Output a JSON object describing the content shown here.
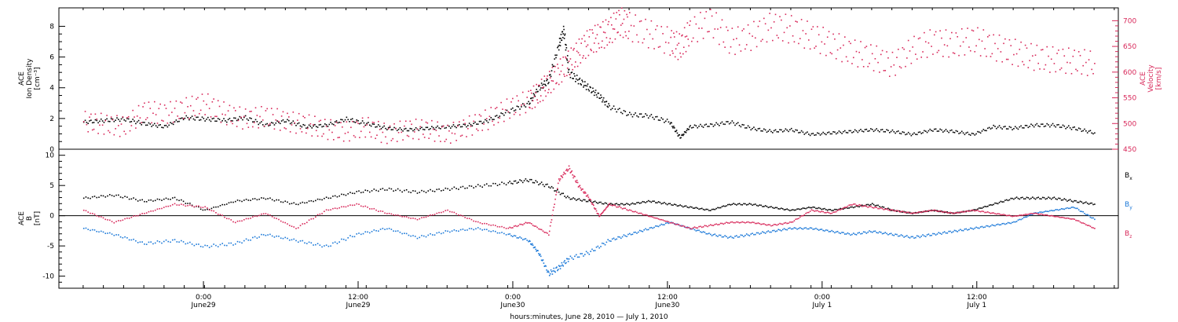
{
  "colors": {
    "black": "#000000",
    "red": "#d8285a",
    "blue": "#1a78d8"
  },
  "chart_data": [
    {
      "type": "scatter",
      "panel": "top",
      "ylabel_left": [
        "ACE",
        "Ion Density",
        "[cm⁻³]"
      ],
      "ylabel_right": [
        "ACE",
        "Velocity",
        "[km/s]"
      ],
      "ylim_left": [
        0,
        9.2
      ],
      "yticks_left": [
        "0",
        "2",
        "4",
        "6",
        "8"
      ],
      "ylim_right": [
        450,
        725
      ],
      "yticks_right": [
        "450",
        "500",
        "550",
        "600",
        "650",
        "700"
      ],
      "series": [
        {
          "color": "black",
          "axis": "left",
          "points": [
            [
              0,
              1.8
            ],
            [
              2,
              1.9
            ],
            [
              4,
              2.0
            ],
            [
              6,
              1.7
            ],
            [
              8,
              1.5
            ],
            [
              10,
              2.1
            ],
            [
              12,
              2.0
            ],
            [
              14,
              1.9
            ],
            [
              16,
              2.1
            ],
            [
              18,
              1.6
            ],
            [
              20,
              1.9
            ],
            [
              22,
              1.5
            ],
            [
              24,
              1.6
            ],
            [
              26,
              2.0
            ],
            [
              28,
              1.7
            ],
            [
              30,
              1.4
            ],
            [
              32,
              1.3
            ],
            [
              34,
              1.4
            ],
            [
              36,
              1.5
            ],
            [
              38,
              1.6
            ],
            [
              40,
              1.9
            ],
            [
              42,
              2.5
            ],
            [
              44,
              3.0
            ],
            [
              45,
              4.0
            ],
            [
              46,
              4.5
            ],
            [
              47,
              6.8
            ],
            [
              47.5,
              7.8
            ],
            [
              48,
              5.0
            ],
            [
              49,
              4.5
            ],
            [
              50,
              4.0
            ],
            [
              51,
              3.5
            ],
            [
              52,
              2.8
            ],
            [
              54,
              2.3
            ],
            [
              56,
              2.2
            ],
            [
              58,
              1.8
            ],
            [
              59,
              0.8
            ],
            [
              60,
              1.5
            ],
            [
              62,
              1.6
            ],
            [
              64,
              1.8
            ],
            [
              66,
              1.4
            ],
            [
              68,
              1.2
            ],
            [
              70,
              1.3
            ],
            [
              72,
              1.0
            ],
            [
              74,
              1.1
            ],
            [
              76,
              1.2
            ],
            [
              78,
              1.3
            ],
            [
              80,
              1.2
            ],
            [
              82,
              1.0
            ],
            [
              84,
              1.3
            ],
            [
              86,
              1.2
            ],
            [
              88,
              1.0
            ],
            [
              90,
              1.5
            ],
            [
              92,
              1.4
            ],
            [
              94,
              1.6
            ],
            [
              96,
              1.6
            ],
            [
              98,
              1.4
            ],
            [
              100,
              1.1
            ]
          ]
        },
        {
          "color": "red",
          "axis": "right",
          "points": [
            [
              0,
              505
            ],
            [
              2,
              500
            ],
            [
              4,
              495
            ],
            [
              6,
              525
            ],
            [
              8,
              520
            ],
            [
              10,
              530
            ],
            [
              12,
              540
            ],
            [
              14,
              520
            ],
            [
              16,
              510
            ],
            [
              18,
              515
            ],
            [
              20,
              505
            ],
            [
              22,
              500
            ],
            [
              24,
              490
            ],
            [
              26,
              485
            ],
            [
              28,
              495
            ],
            [
              30,
              480
            ],
            [
              32,
              490
            ],
            [
              34,
              490
            ],
            [
              36,
              480
            ],
            [
              38,
              495
            ],
            [
              40,
              510
            ],
            [
              42,
              530
            ],
            [
              44,
              545
            ],
            [
              45,
              560
            ],
            [
              46,
              580
            ],
            [
              47,
              600
            ],
            [
              48,
              620
            ],
            [
              49,
              640
            ],
            [
              50,
              660
            ],
            [
              51,
              670
            ],
            [
              52,
              680
            ],
            [
              53,
              700
            ],
            [
              54,
              690
            ],
            [
              56,
              675
            ],
            [
              58,
              660
            ],
            [
              59,
              650
            ],
            [
              60,
              680
            ],
            [
              62,
              700
            ],
            [
              64,
              660
            ],
            [
              66,
              670
            ],
            [
              68,
              690
            ],
            [
              70,
              685
            ],
            [
              72,
              670
            ],
            [
              74,
              655
            ],
            [
              76,
              640
            ],
            [
              78,
              630
            ],
            [
              80,
              615
            ],
            [
              82,
              645
            ],
            [
              84,
              660
            ],
            [
              86,
              655
            ],
            [
              88,
              665
            ],
            [
              90,
              650
            ],
            [
              92,
              640
            ],
            [
              94,
              630
            ],
            [
              96,
              625
            ],
            [
              98,
              622
            ],
            [
              100,
              618
            ]
          ]
        }
      ]
    },
    {
      "type": "scatter",
      "panel": "bottom",
      "ylabel_left": [
        "ACE",
        "B",
        "[nT]"
      ],
      "ylim": [
        -12,
        11
      ],
      "yticks": [
        "10",
        "5",
        "0",
        "-5",
        "-10"
      ],
      "zero_line": true,
      "legend": [
        "B",
        "B",
        "B"
      ],
      "legend_subscripts": [
        "x",
        "y",
        "z"
      ],
      "legend_placement": "right",
      "series": [
        {
          "color": "black",
          "points": [
            [
              0,
              3.0
            ],
            [
              3,
              3.5
            ],
            [
              6,
              2.5
            ],
            [
              9,
              3.0
            ],
            [
              12,
              1.0
            ],
            [
              15,
              2.5
            ],
            [
              18,
              3.0
            ],
            [
              21,
              2.0
            ],
            [
              24,
              3.0
            ],
            [
              27,
              4.0
            ],
            [
              30,
              4.5
            ],
            [
              33,
              4.0
            ],
            [
              36,
              4.5
            ],
            [
              39,
              5.0
            ],
            [
              42,
              5.5
            ],
            [
              44,
              6.0
            ],
            [
              46,
              5.0
            ],
            [
              48,
              3.0
            ],
            [
              50,
              2.5
            ],
            [
              52,
              2.0
            ],
            [
              54,
              2.0
            ],
            [
              56,
              2.5
            ],
            [
              58,
              2.0
            ],
            [
              60,
              1.5
            ],
            [
              62,
              1.0
            ],
            [
              64,
              2.0
            ],
            [
              66,
              2.0
            ],
            [
              68,
              1.5
            ],
            [
              70,
              1.0
            ],
            [
              72,
              1.5
            ],
            [
              74,
              1.0
            ],
            [
              76,
              1.5
            ],
            [
              78,
              2.0
            ],
            [
              80,
              1.0
            ],
            [
              82,
              0.5
            ],
            [
              84,
              1.0
            ],
            [
              86,
              0.5
            ],
            [
              88,
              1.0
            ],
            [
              90,
              2.0
            ],
            [
              92,
              3.0
            ],
            [
              94,
              3.0
            ],
            [
              96,
              3.0
            ],
            [
              98,
              2.5
            ],
            [
              100,
              2.0
            ]
          ]
        },
        {
          "color": "blue",
          "points": [
            [
              0,
              -2.0
            ],
            [
              3,
              -3.0
            ],
            [
              6,
              -4.5
            ],
            [
              9,
              -4.0
            ],
            [
              12,
              -5.0
            ],
            [
              15,
              -4.5
            ],
            [
              18,
              -3.0
            ],
            [
              21,
              -4.0
            ],
            [
              24,
              -5.0
            ],
            [
              27,
              -3.0
            ],
            [
              30,
              -2.0
            ],
            [
              33,
              -3.5
            ],
            [
              36,
              -2.5
            ],
            [
              39,
              -2.0
            ],
            [
              42,
              -3.0
            ],
            [
              44,
              -4.0
            ],
            [
              45,
              -6.0
            ],
            [
              46,
              -9.5
            ],
            [
              47,
              -8.5
            ],
            [
              48,
              -7.0
            ],
            [
              50,
              -6.0
            ],
            [
              52,
              -4.0
            ],
            [
              54,
              -3.0
            ],
            [
              56,
              -2.0
            ],
            [
              58,
              -1.0
            ],
            [
              60,
              -2.0
            ],
            [
              62,
              -3.0
            ],
            [
              64,
              -3.5
            ],
            [
              66,
              -3.0
            ],
            [
              68,
              -2.5
            ],
            [
              70,
              -2.0
            ],
            [
              72,
              -2.0
            ],
            [
              74,
              -2.5
            ],
            [
              76,
              -3.0
            ],
            [
              78,
              -2.5
            ],
            [
              80,
              -3.0
            ],
            [
              82,
              -3.5
            ],
            [
              84,
              -3.0
            ],
            [
              86,
              -2.5
            ],
            [
              88,
              -2.0
            ],
            [
              90,
              -1.5
            ],
            [
              92,
              -1.0
            ],
            [
              94,
              0.5
            ],
            [
              96,
              1.0
            ],
            [
              98,
              1.5
            ],
            [
              100,
              -0.5
            ]
          ]
        },
        {
          "color": "red",
          "points": [
            [
              0,
              1.0
            ],
            [
              3,
              -1.0
            ],
            [
              6,
              0.5
            ],
            [
              9,
              2.0
            ],
            [
              12,
              1.5
            ],
            [
              15,
              -1.0
            ],
            [
              18,
              0.5
            ],
            [
              21,
              -2.0
            ],
            [
              24,
              1.0
            ],
            [
              27,
              2.0
            ],
            [
              30,
              0.5
            ],
            [
              33,
              -0.5
            ],
            [
              36,
              1.0
            ],
            [
              39,
              -1.0
            ],
            [
              42,
              -2.0
            ],
            [
              44,
              -1.0
            ],
            [
              46,
              -3.0
            ],
            [
              47,
              6.0
            ],
            [
              48,
              8.0
            ],
            [
              49,
              5.0
            ],
            [
              50,
              3.0
            ],
            [
              51,
              0.0
            ],
            [
              52,
              2.0
            ],
            [
              54,
              1.0
            ],
            [
              56,
              0.0
            ],
            [
              58,
              -1.0
            ],
            [
              60,
              -2.0
            ],
            [
              62,
              -1.5
            ],
            [
              64,
              -1.0
            ],
            [
              66,
              -1.0
            ],
            [
              68,
              -1.5
            ],
            [
              70,
              -1.0
            ],
            [
              72,
              1.0
            ],
            [
              74,
              0.5
            ],
            [
              76,
              2.0
            ],
            [
              78,
              1.5
            ],
            [
              80,
              1.0
            ],
            [
              82,
              0.5
            ],
            [
              84,
              1.0
            ],
            [
              86,
              0.5
            ],
            [
              88,
              1.0
            ],
            [
              90,
              0.5
            ],
            [
              92,
              0.0
            ],
            [
              94,
              0.5
            ],
            [
              96,
              0.0
            ],
            [
              98,
              -0.5
            ],
            [
              100,
              -2.0
            ]
          ]
        }
      ]
    }
  ],
  "x_axis": {
    "ticks": [
      {
        "x": 11.9,
        "time": "0:00",
        "date": "June29"
      },
      {
        "x": 27.2,
        "time": "12:00",
        "date": "June29"
      },
      {
        "x": 42.5,
        "time": "0:00",
        "date": "June30"
      },
      {
        "x": 57.8,
        "time": "12:00",
        "date": "June30"
      },
      {
        "x": 73.1,
        "time": "0:00",
        "date": "July 1"
      },
      {
        "x": 88.4,
        "time": "12:00",
        "date": "July 1"
      }
    ],
    "xlim": [
      -2.4,
      102.4
    ],
    "label": "hours:minutes, June 28, 2010 — July  1, 2010"
  }
}
